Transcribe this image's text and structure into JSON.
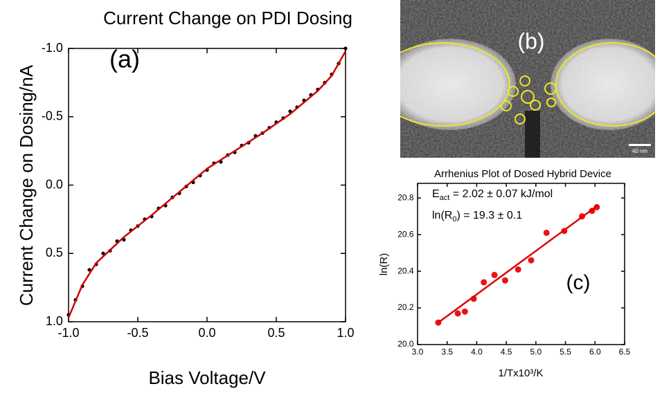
{
  "chart_data": [
    {
      "type": "scatter",
      "title": "Current Change on PDI Dosing",
      "xlabel": "Bias Voltage/V",
      "ylabel": "Current Change on Dosing/nA",
      "annotation": "(a)",
      "xlim": [
        -1,
        1
      ],
      "ylim": [
        1,
        -1
      ],
      "xticks": [
        {
          "value": -1,
          "label": "-1.0"
        },
        -0.5,
        {
          "value": 0,
          "label": "0.0"
        },
        0.5,
        {
          "value": 1,
          "label": "1.0"
        }
      ],
      "yticks": [
        {
          "value": -1,
          "label": "-1.0"
        },
        -0.5,
        {
          "value": 0,
          "label": "0.0"
        },
        0.5,
        {
          "value": 1,
          "label": "1.0"
        }
      ],
      "series": [
        {
          "style": "markers",
          "color": "#000000",
          "x": [
            -1,
            -0.95,
            -0.9,
            -0.85,
            -0.8,
            -0.75,
            -0.7,
            -0.65,
            -0.6,
            -0.55,
            -0.5,
            -0.45,
            -0.4,
            -0.35,
            -0.3,
            -0.25,
            -0.2,
            -0.15,
            -0.1,
            -0.05,
            0,
            0.05,
            0.1,
            0.15,
            0.2,
            0.25,
            0.3,
            0.35,
            0.4,
            0.45,
            0.5,
            0.55,
            0.6,
            0.65,
            0.7,
            0.75,
            0.8,
            0.85,
            0.9,
            0.95,
            1
          ],
          "values": [
            0.95,
            0.84,
            0.74,
            0.62,
            0.58,
            0.5,
            0.48,
            0.41,
            0.4,
            0.33,
            0.3,
            0.25,
            0.23,
            0.17,
            0.15,
            0.09,
            0.06,
            0.01,
            -0.02,
            -0.07,
            -0.11,
            -0.16,
            -0.17,
            -0.22,
            -0.24,
            -0.29,
            -0.31,
            -0.36,
            -0.38,
            -0.42,
            -0.46,
            -0.49,
            -0.54,
            -0.57,
            -0.62,
            -0.66,
            -0.7,
            -0.75,
            -0.81,
            -0.89,
            -1.0
          ]
        },
        {
          "style": "line",
          "color": "#cc0000",
          "x": [
            -1,
            -0.9,
            -0.8,
            -0.6,
            -0.4,
            -0.2,
            0,
            0.2,
            0.4,
            0.6,
            0.8,
            0.9,
            1
          ],
          "values": [
            0.97,
            0.73,
            0.57,
            0.38,
            0.22,
            0.05,
            -0.12,
            -0.25,
            -0.38,
            -0.52,
            -0.69,
            -0.8,
            -0.98
          ]
        }
      ]
    },
    {
      "type": "scatter",
      "title": "Arrhenius Plot of Dosed Hybrid Device",
      "xlabel": "1/Tx10³/K",
      "ylabel": "ln(R)",
      "annotation": "(c)",
      "text_lines": [
        [
          "E",
          "act",
          " = 2.02 ± 0.07 kJ/mol"
        ],
        [
          "ln(R",
          "0",
          ") = 19.3 ± 0.1"
        ]
      ],
      "xlim": [
        3,
        6.5
      ],
      "ylim": [
        20,
        20.88
      ],
      "xticks": [
        {
          "value": 3,
          "label": "3.0"
        },
        3.5,
        {
          "value": 4,
          "label": "4.0"
        },
        4.5,
        {
          "value": 5,
          "label": "5.0"
        },
        5.5,
        {
          "value": 6,
          "label": "6.0"
        },
        6.5
      ],
      "yticks": [
        {
          "value": 20,
          "label": "20.0"
        },
        20.2,
        20.4,
        20.6,
        20.8
      ],
      "series": [
        {
          "style": "markers",
          "color": "#ee1111",
          "x": [
            3.35,
            3.68,
            3.8,
            3.95,
            4.12,
            4.3,
            4.48,
            4.7,
            4.92,
            5.18,
            5.48,
            5.78,
            5.95,
            6.03
          ],
          "values": [
            20.12,
            20.17,
            20.18,
            20.25,
            20.34,
            20.38,
            20.35,
            20.41,
            20.46,
            20.61,
            20.62,
            20.7,
            20.73,
            20.75
          ]
        },
        {
          "style": "line",
          "color": "#dd0000",
          "x": [
            3.35,
            6.05
          ],
          "values": [
            20.12,
            20.76
          ]
        }
      ]
    }
  ],
  "image": {
    "label": "(b)",
    "scale_bar": "40 nm"
  }
}
